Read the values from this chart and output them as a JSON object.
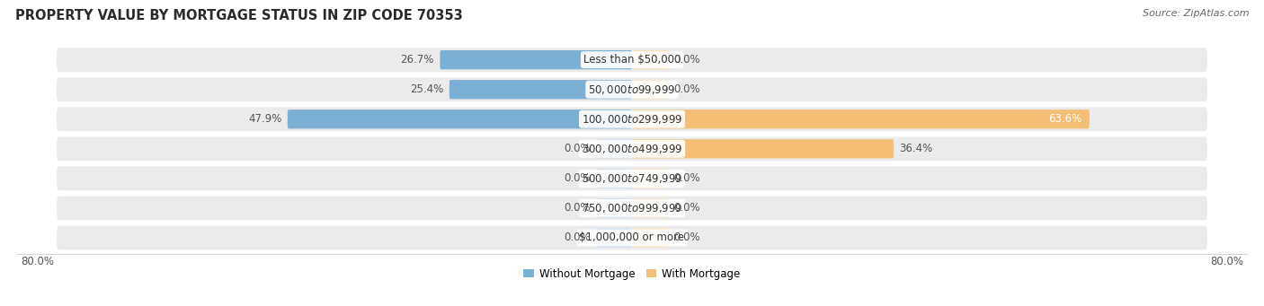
{
  "title": "PROPERTY VALUE BY MORTGAGE STATUS IN ZIP CODE 70353",
  "source": "Source: ZipAtlas.com",
  "categories": [
    "Less than $50,000",
    "$50,000 to $99,999",
    "$100,000 to $299,999",
    "$300,000 to $499,999",
    "$500,000 to $749,999",
    "$750,000 to $999,999",
    "$1,000,000 or more"
  ],
  "without_mortgage": [
    26.7,
    25.4,
    47.9,
    0.0,
    0.0,
    0.0,
    0.0
  ],
  "with_mortgage": [
    0.0,
    0.0,
    63.6,
    36.4,
    0.0,
    0.0,
    0.0
  ],
  "color_without": "#7bafd4",
  "color_with": "#f5be76",
  "color_without_faint": "#c5d9ed",
  "color_with_faint": "#fae0b8",
  "row_bg_color": "#ebebeb",
  "max_val": 80.0,
  "stub_val": 5.0,
  "axis_label_left": "80.0%",
  "axis_label_right": "80.0%",
  "legend_without": "Without Mortgage",
  "legend_with": "With Mortgage",
  "title_fontsize": 10.5,
  "source_fontsize": 8,
  "label_fontsize": 8.5,
  "cat_fontsize": 8.5,
  "tick_fontsize": 8.5
}
